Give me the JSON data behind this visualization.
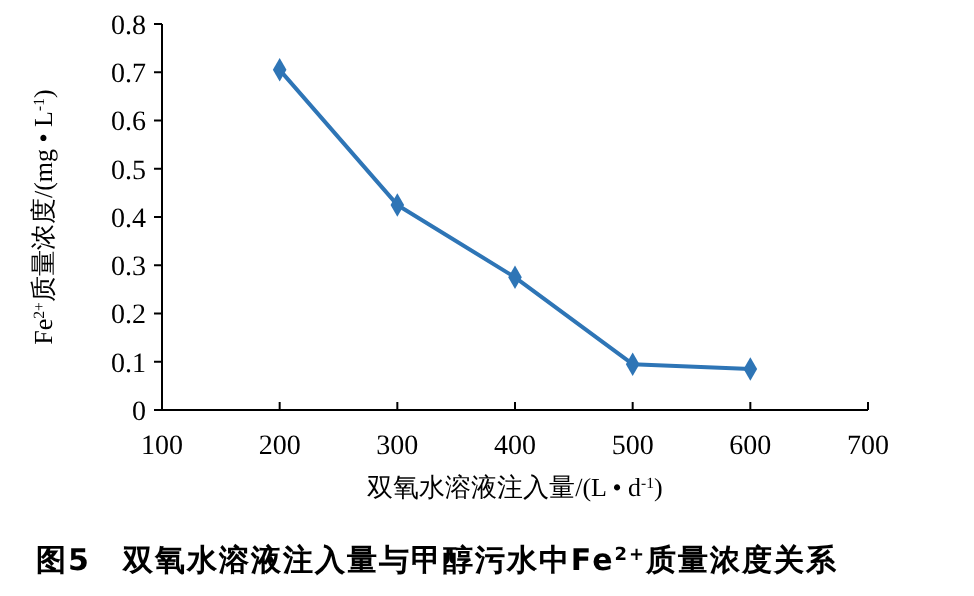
{
  "chart_data": {
    "type": "line",
    "title": "图5　双氧水溶液注入量与甲醇污水中Fe$^{2+}$质量浓度关系",
    "xlabel": "双氧水溶液注入量/(L • d$^{-1}$)",
    "ylabel": "Fe$^{2+}$质量浓度/(mg • L$^{-1}$)",
    "x": [
      200,
      300,
      400,
      500,
      600
    ],
    "series": [
      {
        "color": "#2e75b6",
        "values": [
          0.705,
          0.425,
          0.275,
          0.095,
          0.085
        ]
      }
    ],
    "xlim": [
      100,
      700
    ],
    "xticks": [
      100,
      200,
      300,
      400,
      500,
      600,
      700
    ],
    "ylim": [
      0,
      0.8
    ],
    "yticks": [
      0,
      0.1,
      0.2,
      0.3,
      0.4,
      0.5,
      0.6,
      0.7,
      0.8
    ],
    "marker": "diamond",
    "line_style": "solid",
    "grid": false
  }
}
